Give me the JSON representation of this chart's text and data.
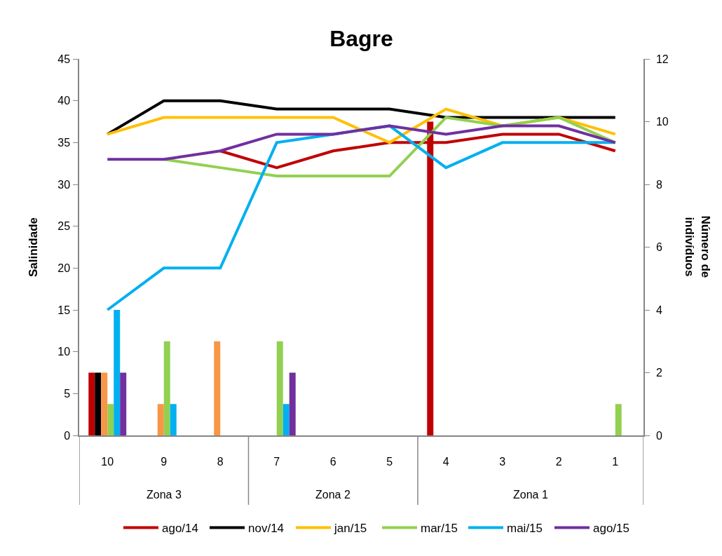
{
  "chart_data": {
    "type": "line",
    "title": "Bagre",
    "ylabel": "Salinidade",
    "y2label": "Número de indivíduos",
    "categories": [
      "10",
      "9",
      "8",
      "7",
      "6",
      "5",
      "4",
      "3",
      "2",
      "1"
    ],
    "annotations": [
      "Zona 3",
      "Zona 2",
      "Zona 1"
    ],
    "ylim": [
      0,
      45
    ],
    "yticks": [
      0,
      5,
      10,
      15,
      20,
      25,
      30,
      35,
      40,
      45
    ],
    "y2lim": [
      0,
      12
    ],
    "y2ticks": [
      0,
      2,
      4,
      6,
      8,
      10,
      12
    ],
    "grid": false,
    "legend": "bottom",
    "marker": "none",
    "line_style": "solid",
    "series": [
      {
        "type": "bar",
        "axis": "y2",
        "color": "#c00000",
        "values": [
          2,
          0,
          0,
          0,
          0,
          0,
          10,
          0,
          0,
          0
        ]
      },
      {
        "type": "bar",
        "axis": "y2",
        "color": "#000000",
        "values": [
          2,
          0,
          0,
          0,
          0,
          0,
          0,
          0,
          0,
          0
        ]
      },
      {
        "type": "bar",
        "axis": "y2",
        "color": "#f79646",
        "values": [
          2,
          1,
          3,
          0,
          0,
          0,
          0,
          0,
          0,
          0
        ]
      },
      {
        "type": "bar",
        "axis": "y2",
        "color": "#92d050",
        "values": [
          1,
          3,
          0,
          3,
          0,
          0,
          0,
          0,
          0,
          1
        ]
      },
      {
        "type": "bar",
        "axis": "y2",
        "color": "#00b0f0",
        "values": [
          4,
          1,
          0,
          1,
          0,
          0,
          0,
          0,
          0,
          0
        ]
      },
      {
        "type": "bar",
        "axis": "y2",
        "color": "#7030a0",
        "values": [
          2,
          0,
          0,
          2,
          0,
          0,
          0,
          0,
          0,
          0
        ]
      },
      {
        "name": "ago/14",
        "color": "#c00000",
        "values": [
          null,
          null,
          34,
          32,
          34,
          35,
          35,
          36,
          36,
          34
        ]
      },
      {
        "name": "nov/14",
        "color": "#000000",
        "values": [
          36,
          40,
          40,
          39,
          39,
          39,
          38,
          38,
          38,
          38
        ]
      },
      {
        "name": "jan/15",
        "color": "#ffc000",
        "values": [
          36,
          38,
          38,
          38,
          38,
          35,
          39,
          37,
          38,
          36
        ]
      },
      {
        "name": "mar/15",
        "color": "#92d050",
        "values": [
          null,
          33,
          32,
          31,
          31,
          31,
          38,
          37,
          38,
          35
        ]
      },
      {
        "name": "mai/15",
        "color": "#00b0f0",
        "values": [
          15,
          20,
          20,
          35,
          36,
          37,
          32,
          35,
          35,
          35
        ]
      },
      {
        "name": "ago/15",
        "color": "#7030a0",
        "values": [
          33,
          33,
          34,
          36,
          36,
          37,
          36,
          37,
          37,
          35
        ]
      }
    ]
  }
}
